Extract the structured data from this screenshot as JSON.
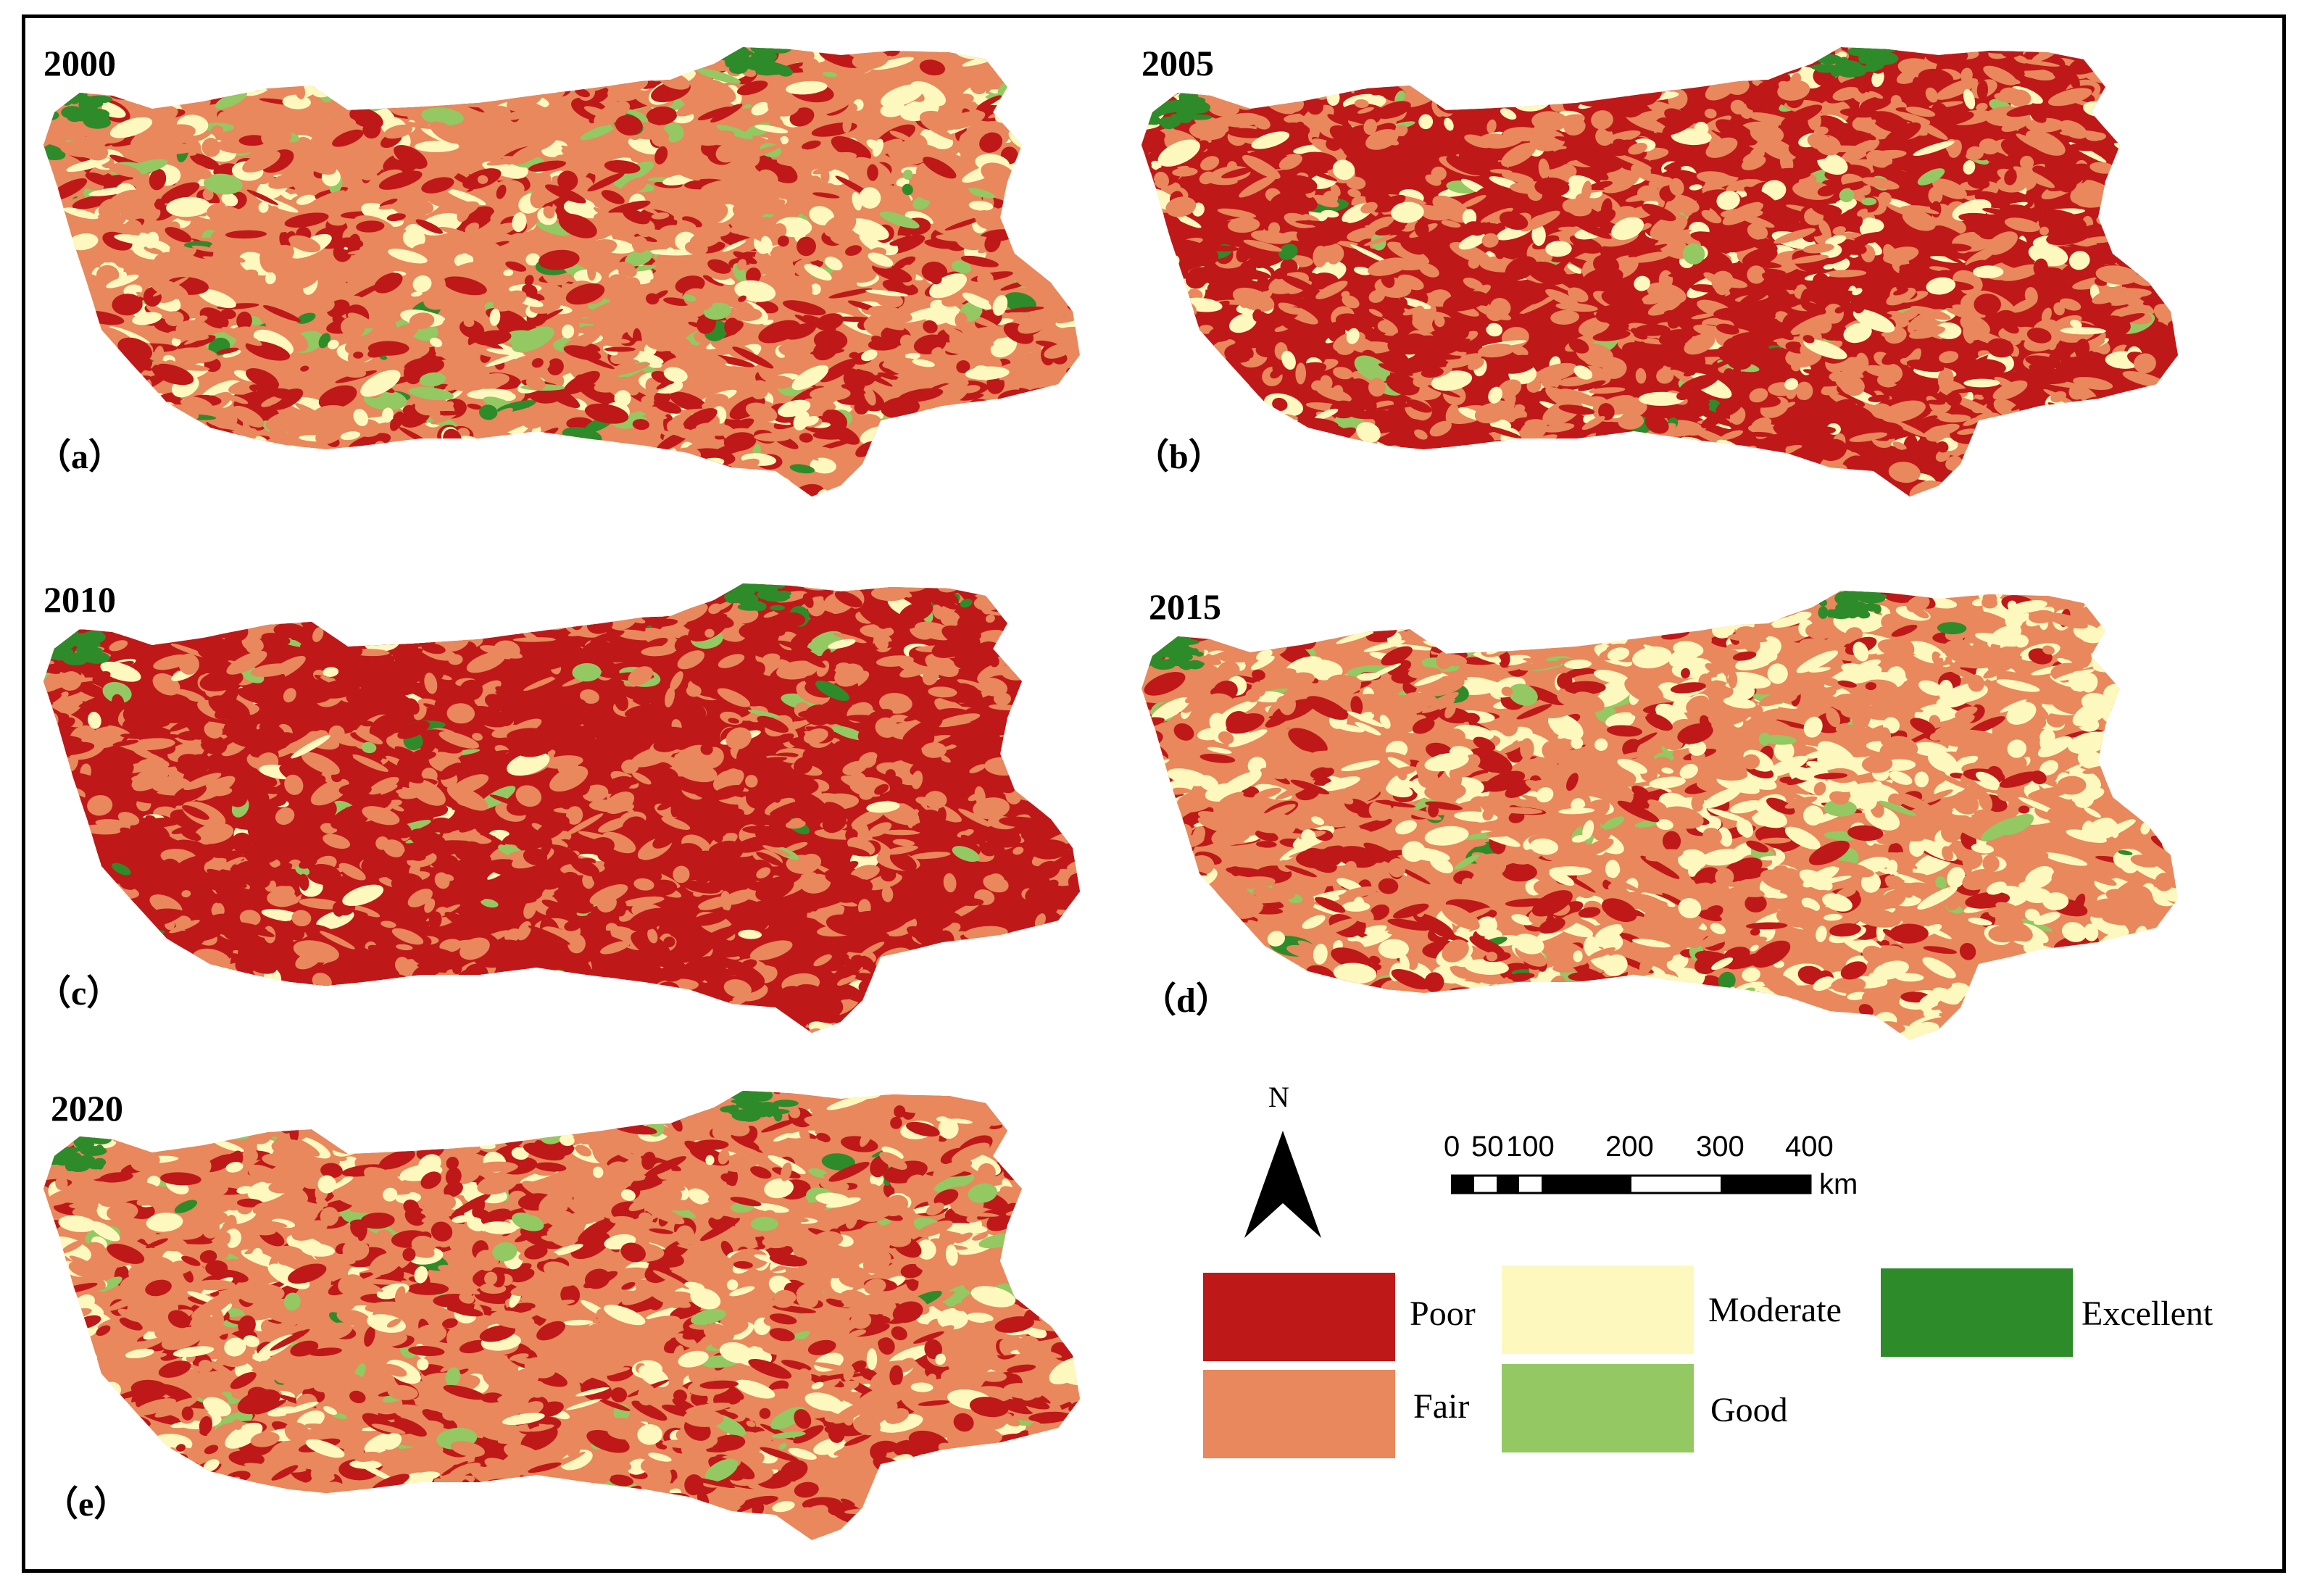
{
  "panels": [
    {
      "year": "2000",
      "label": "（a）",
      "mix": [
        0.22,
        0.56,
        0.17,
        0.045,
        0.015
      ]
    },
    {
      "year": "2005",
      "label": "（b）",
      "mix": [
        0.44,
        0.43,
        0.11,
        0.015,
        0.005
      ]
    },
    {
      "year": "2010",
      "label": "（c）",
      "mix": [
        0.62,
        0.34,
        0.02,
        0.015,
        0.005
      ]
    },
    {
      "year": "2015",
      "label": "（d）",
      "mix": [
        0.25,
        0.46,
        0.27,
        0.015,
        0.005
      ]
    },
    {
      "year": "2020",
      "label": "（e）",
      "mix": [
        0.26,
        0.54,
        0.15,
        0.04,
        0.01
      ]
    }
  ],
  "legend": {
    "classes": [
      {
        "label": "Poor",
        "color": "#BF1818"
      },
      {
        "label": "Fair",
        "color": "#E8885C"
      },
      {
        "label": "Moderate",
        "color": "#FDF9BE"
      },
      {
        "label": "Good",
        "color": "#93C862"
      },
      {
        "label": "Excellent",
        "color": "#2E8B2A"
      }
    ]
  },
  "north": {
    "label": "N"
  },
  "scalebar": {
    "ticks": [
      "0",
      "50",
      "100",
      "200",
      "300",
      "400"
    ],
    "unit": "km"
  }
}
